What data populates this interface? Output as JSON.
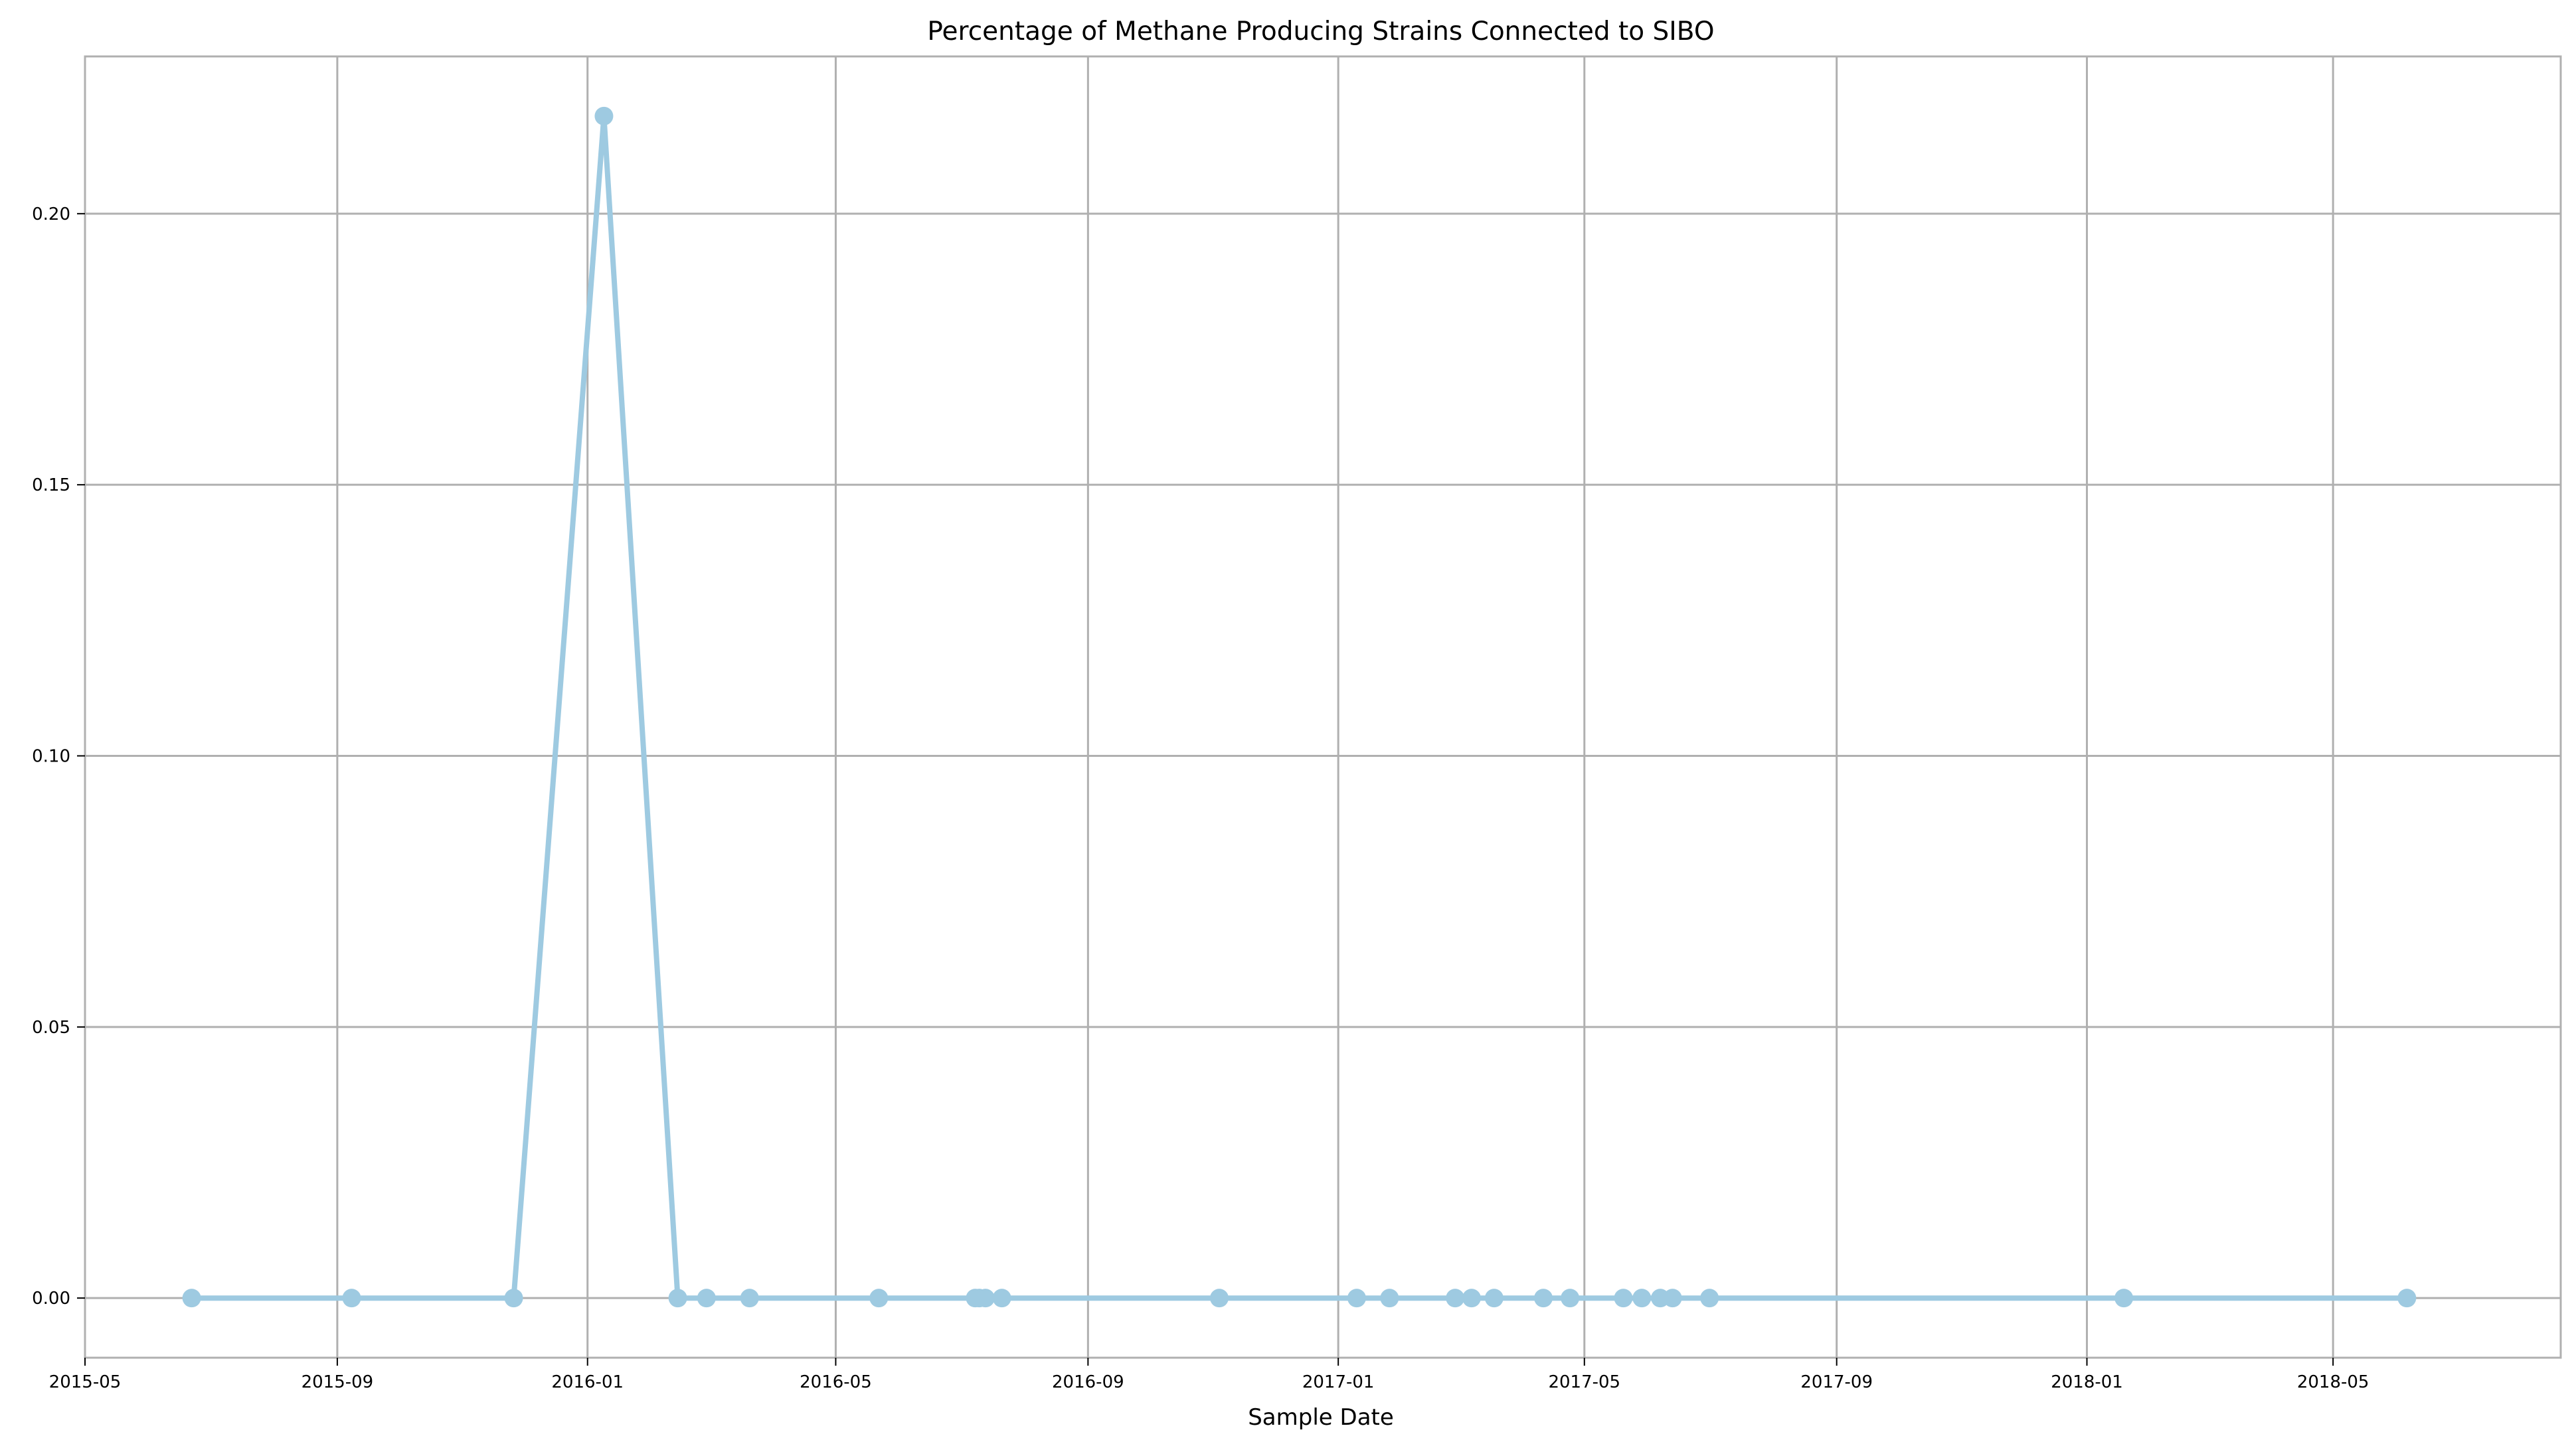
{
  "chart_data": {
    "type": "line",
    "title": "Percentage of Methane Producing Strains Connected to SIBO",
    "xlabel": "Sample Date",
    "ylabel": "",
    "xlim": [
      "2015-05-01",
      "2018-08-20"
    ],
    "ylim": [
      -0.011,
      0.229
    ],
    "grid": true,
    "legend": "none",
    "x_ticks": [
      "2015-05",
      "2015-09",
      "2016-01",
      "2016-05",
      "2016-09",
      "2017-01",
      "2017-05",
      "2017-09",
      "2018-01",
      "2018-05"
    ],
    "y_ticks": [
      "0.00",
      "0.05",
      "0.10",
      "0.15",
      "0.20"
    ],
    "colors": {
      "series": "#9ecae1",
      "grid": "#b0b0b0",
      "axes": "#b0b0b0"
    },
    "series": [
      {
        "name": "",
        "x": [
          "2015-06-22",
          "2015-09-08",
          "2015-11-26",
          "2016-01-09",
          "2016-02-14",
          "2016-02-28",
          "2016-03-20",
          "2016-05-22",
          "2016-07-08",
          "2016-07-10",
          "2016-07-13",
          "2016-07-21",
          "2016-11-04",
          "2017-01-10",
          "2017-01-26",
          "2017-02-27",
          "2017-03-07",
          "2017-03-18",
          "2017-04-11",
          "2017-04-24",
          "2017-05-20",
          "2017-05-29",
          "2017-06-07",
          "2017-06-13",
          "2017-07-01",
          "2018-01-19",
          "2018-06-06"
        ],
        "y": [
          0.0,
          0.0,
          0.0,
          0.218,
          0.0,
          0.0,
          0.0,
          0.0,
          0.0,
          0.0,
          0.0,
          0.0,
          0.0,
          0.0,
          0.0,
          0.0,
          0.0,
          0.0,
          0.0,
          0.0,
          0.0,
          0.0,
          0.0,
          0.0,
          0.0,
          0.0,
          0.0
        ]
      }
    ]
  }
}
